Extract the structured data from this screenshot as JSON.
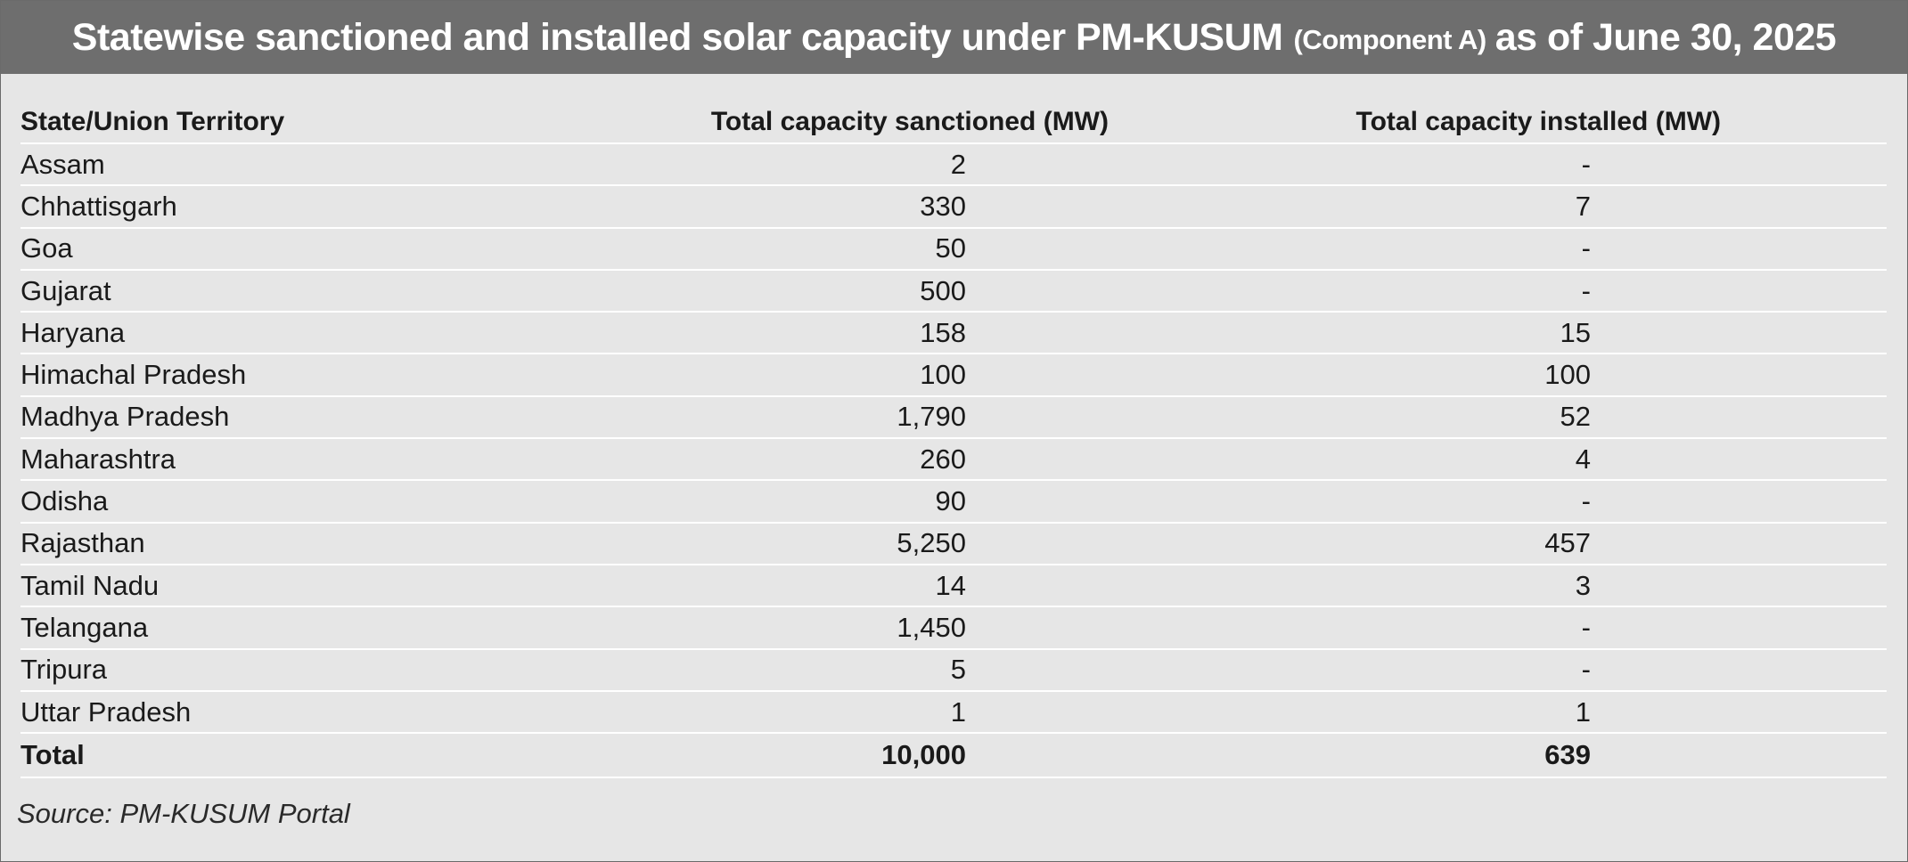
{
  "title": {
    "part1": "Statewise sanctioned and installed solar capacity under PM-KUSUM",
    "part2": "(Component A)",
    "part3": "as of June 30, 2025"
  },
  "columns": [
    "State/Union Territory",
    "Total capacity sanctioned (MW)",
    "Total capacity installed (MW)"
  ],
  "rows": [
    {
      "state": "Assam",
      "sanctioned": "2",
      "installed": "-"
    },
    {
      "state": "Chhattisgarh",
      "sanctioned": "330",
      "installed": "7"
    },
    {
      "state": "Goa",
      "sanctioned": "50",
      "installed": "-"
    },
    {
      "state": "Gujarat",
      "sanctioned": "500",
      "installed": "-"
    },
    {
      "state": "Haryana",
      "sanctioned": "158",
      "installed": "15"
    },
    {
      "state": "Himachal Pradesh",
      "sanctioned": "100",
      "installed": "100"
    },
    {
      "state": "Madhya Pradesh",
      "sanctioned": "1,790",
      "installed": "52"
    },
    {
      "state": "Maharashtra",
      "sanctioned": "260",
      "installed": "4"
    },
    {
      "state": "Odisha",
      "sanctioned": "90",
      "installed": "-"
    },
    {
      "state": "Rajasthan",
      "sanctioned": "5,250",
      "installed": "457"
    },
    {
      "state": "Tamil Nadu",
      "sanctioned": "14",
      "installed": "3"
    },
    {
      "state": "Telangana",
      "sanctioned": "1,450",
      "installed": "-"
    },
    {
      "state": "Tripura",
      "sanctioned": "5",
      "installed": "-"
    },
    {
      "state": "Uttar Pradesh",
      "sanctioned": "1",
      "installed": "1"
    }
  ],
  "total": {
    "label": "Total",
    "sanctioned": "10,000",
    "installed": "639"
  },
  "source": "Source: PM-KUSUM Portal",
  "colors": {
    "title_bar": "#6e6e6e",
    "panel": "#e6e6e6",
    "row_divider": "#ffffff"
  }
}
